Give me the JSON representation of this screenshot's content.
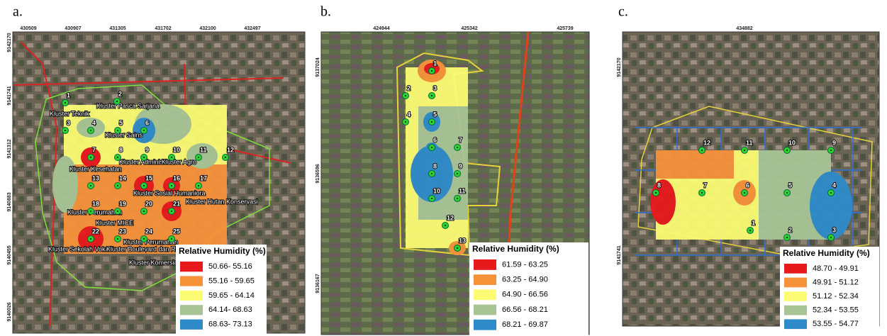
{
  "panels": [
    {
      "label": "a.",
      "xcoords": [
        "430509",
        "430907",
        "431305",
        "431702",
        "432100",
        "432497"
      ],
      "ycoords": [
        "9142170",
        "9141741",
        "9141312",
        "9140883",
        "9140455",
        "9140026"
      ],
      "points": [
        "1",
        "2",
        "3",
        "4",
        "5",
        "6",
        "7",
        "8",
        "9",
        "10",
        "11",
        "12",
        "13",
        "14",
        "15",
        "16",
        "17",
        "18",
        "19",
        "20",
        "21",
        "22",
        "23",
        "24",
        "25"
      ],
      "places": [
        "Kluster Teknik",
        "Kluster Pasca Sarjana",
        "Kluster Sains",
        "Kluster Administrasi",
        "Kluster Agro",
        "Kluster Kesehatan",
        "Kluster Sosial Humaniora",
        "Kluster Hutan Konservasi",
        "Kluster Perumahan",
        "Kluster MICE",
        "Kluster Perumahan",
        "Kluster Sekolah Vokasi",
        "Kluster Boulevard dan Ri",
        "Kluster Komersial"
      ],
      "legend": {
        "title": "Relative Humidity (%)",
        "items": [
          {
            "label": "50.66- 55.16",
            "color": "#e8191c"
          },
          {
            "label": "55.16 - 59.65",
            "color": "#f7923a"
          },
          {
            "label": "59.65 - 64.14",
            "color": "#fbfb74"
          },
          {
            "label": "64.14- 68.63",
            "color": "#a8c495"
          },
          {
            "label": "68.63- 73.13",
            "color": "#2e8bc9"
          }
        ]
      }
    },
    {
      "label": "b.",
      "xcoords": [
        "424944",
        "425342",
        "425739"
      ],
      "ycoords": [
        "9137024",
        "9136596",
        "9136167"
      ],
      "points": [
        "1",
        "2",
        "3",
        "4",
        "5",
        "6",
        "7",
        "8",
        "9",
        "10",
        "11",
        "12",
        "13"
      ],
      "places": [],
      "legend": {
        "title": "Relative Humidity (%)",
        "items": [
          {
            "label": "61.59 - 63.25",
            "color": "#e8191c"
          },
          {
            "label": "63.25 - 64.90",
            "color": "#f7923a"
          },
          {
            "label": "64.90 - 66.56",
            "color": "#fbfb74"
          },
          {
            "label": "66.56 - 68.21",
            "color": "#a8c495"
          },
          {
            "label": "68.21 - 69.87",
            "color": "#2e8bc9"
          }
        ]
      }
    },
    {
      "label": "c.",
      "xcoords": [
        "434882"
      ],
      "ycoords": [
        "9142170",
        "9141741"
      ],
      "points": [
        "1",
        "2",
        "3",
        "4",
        "5",
        "6",
        "7",
        "8",
        "9",
        "10",
        "11",
        "12"
      ],
      "places": [],
      "legend": {
        "title": "Relative Humidity (%)",
        "items": [
          {
            "label": "48.70 - 49.91",
            "color": "#e8191c"
          },
          {
            "label": "49.91 - 51.12",
            "color": "#f7923a"
          },
          {
            "label": "51.12 - 52.34",
            "color": "#fbfb74"
          },
          {
            "label": "52.34 - 53.55",
            "color": "#a8c495"
          },
          {
            "label": "53.55 - 54.77",
            "color": "#2e8bc9"
          }
        ]
      }
    }
  ]
}
